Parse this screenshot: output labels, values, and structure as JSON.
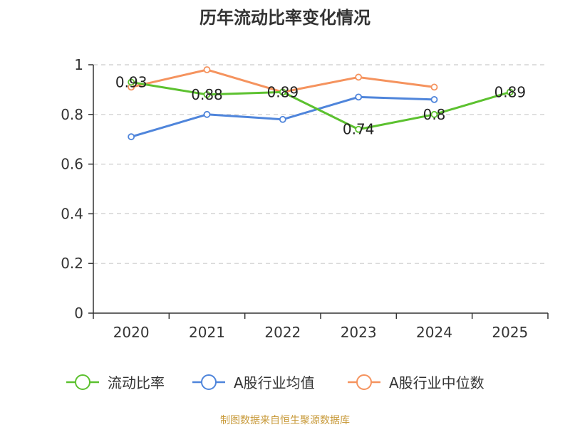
{
  "chart_data": {
    "type": "line",
    "title": "历年流动比率变化情况",
    "categories": [
      "2020",
      "2021",
      "2022",
      "2023",
      "2024",
      "2025"
    ],
    "ylim": [
      0,
      1
    ],
    "yticks": [
      "0",
      "0.2",
      "0.4",
      "0.6",
      "0.8",
      "1"
    ],
    "ytick_values": [
      0,
      0.2,
      0.4,
      0.6,
      0.8,
      1
    ],
    "grid": true,
    "legend_position": "bottom",
    "series": [
      {
        "name": "流动比率",
        "color": "#5cc12f",
        "values": [
          0.93,
          0.88,
          0.89,
          0.74,
          0.8,
          0.89
        ],
        "labels": [
          "0.93",
          "0.88",
          "0.89",
          "0.74",
          "0.8",
          "0.89"
        ]
      },
      {
        "name": "A股行业均值",
        "color": "#4f85db",
        "values": [
          0.71,
          0.8,
          0.78,
          0.87,
          0.86,
          null
        ],
        "labels": null
      },
      {
        "name": "A股行业中位数",
        "color": "#f5935e",
        "values": [
          0.91,
          0.98,
          0.89,
          0.95,
          0.91,
          null
        ],
        "labels": null
      }
    ]
  },
  "source": {
    "text": "制图数据来自恒生聚源数据库",
    "color": "#c89a3a"
  }
}
